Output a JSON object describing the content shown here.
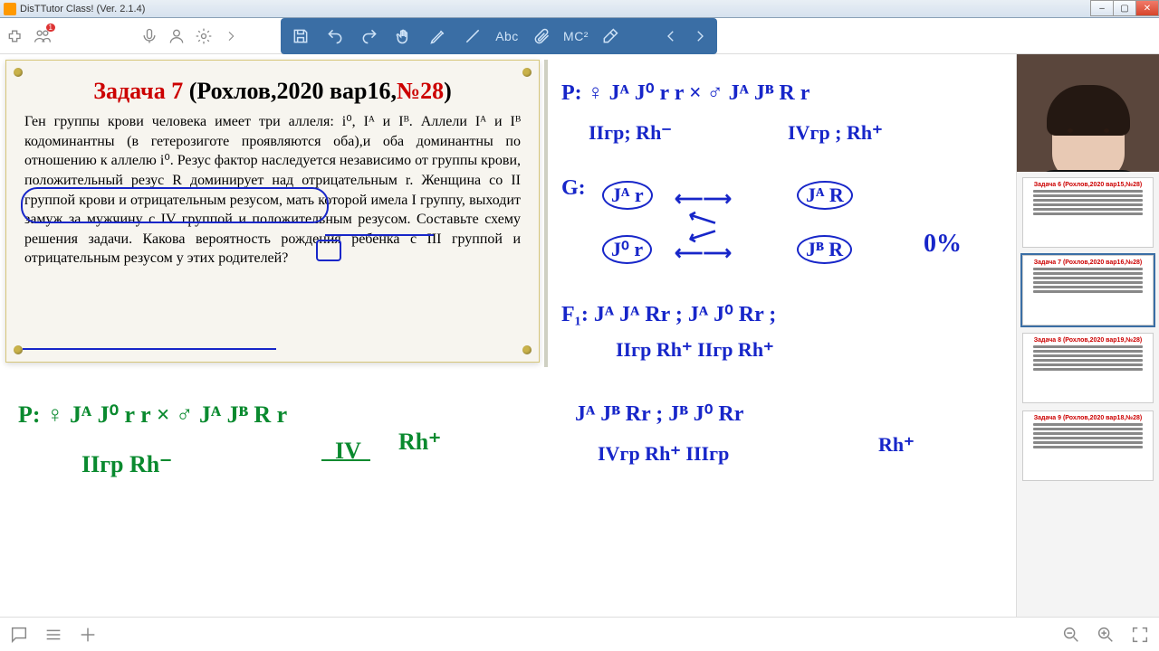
{
  "window": {
    "title": "DisTTutor Class! (Ver. 2.1.4)"
  },
  "apptool": {
    "badge": "1"
  },
  "bluetool": {
    "abc": "Abc",
    "mc2": "MC²"
  },
  "slide": {
    "title_red1": "Задача 7",
    "title_black": "  (Рохлов,2020 вар16,",
    "title_red2": "№28",
    "title_black2": ")",
    "body": "Ген группы крови человека имеет три аллеля: i⁰, Iᴬ и Iᴮ. Аллели Iᴬ и Iᴮ кодоминантны (в гетерозиготе проявляются оба),и оба доминантны по отношению к аллелю i⁰. Резус фактор наследуется независимо от группы крови, положительный резус R доминирует над отрицательным r. Женщина со II группой крови и отрицательным резусом, мать которой имела I группу, выходит замуж за мужчину с IV группой и положительным резусом. Составьте схему решения задачи. Какова вероятность рождения ребенка с III группой и отрицательным резусом у этих родителей?"
  },
  "hw": {
    "gP": "P: ♀ Jᴬ J⁰ r r    ×   ♂ Jᴬ Jᴮ R r",
    "gP2a": "IIгр Rh⁻",
    "gP2b": "IV",
    "gP2c": "Rh⁺",
    "bP": "P: ♀ Jᴬ J⁰ r r   ×  ♂ Jᴬ Jᴮ R r",
    "bP2a": "IIгр; Rh⁻",
    "bP2b": "IVгр ; Rh⁺",
    "G": "G:",
    "g1": "Jᴬ r",
    "g2": "Jᴬ R",
    "g3": "J⁰ r",
    "g4": "Jᴮ R",
    "pct": "0%",
    "F1": "F₁: Jᴬ Jᴬ Rr ; Jᴬ J⁰ Rr ;",
    "F1b": "IIгр Rh⁺   IIгр Rh⁺",
    "F2": "Jᴬ Jᴮ Rr ;  Jᴮ J⁰ Rr",
    "F2b": "IVгр Rh⁺   IIIгр",
    "F2c": "Rh⁺"
  },
  "thumbs": [
    {
      "title": "Задача 6 (Рохлов,2020 вар15,№28)",
      "sel": false
    },
    {
      "title": "Задача 7 (Рохлов,2020 вар16,№28)",
      "sel": true
    },
    {
      "title": "Задача 8 (Рохлов,2020 вар19,№28)",
      "sel": false
    },
    {
      "title": "Задача 9 (Рохлов,2020 вар18,№28)",
      "sel": false
    }
  ]
}
